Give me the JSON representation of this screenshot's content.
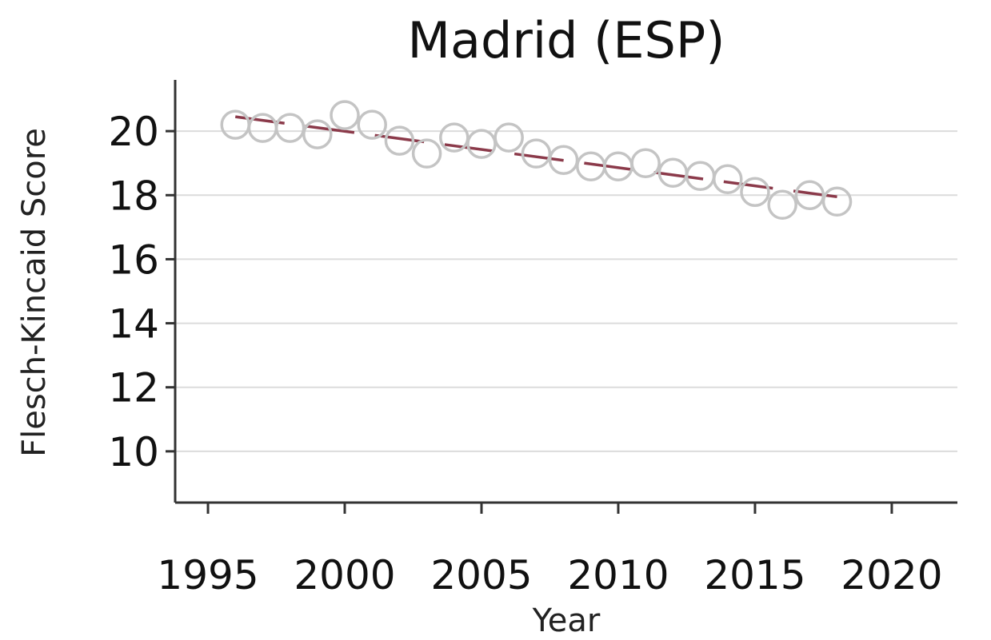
{
  "chart_data": {
    "type": "scatter",
    "title": "Madrid (ESP)",
    "xlabel": "Year",
    "ylabel": "Flesch-Kincaid Score",
    "xlim": [
      1993.8,
      2022.4
    ],
    "ylim": [
      8.4,
      21.6
    ],
    "xticks": [
      1995,
      2000,
      2005,
      2010,
      2015,
      2020
    ],
    "yticks": [
      10,
      12,
      14,
      16,
      18,
      20
    ],
    "grid": "horizontal",
    "colors": {
      "points": "#c4c4c4",
      "trend": "#8b3a4a"
    },
    "series": [
      {
        "type": "scatter",
        "x": [
          1996,
          1997,
          1998,
          1999,
          2000,
          2001,
          2002,
          2003,
          2004,
          2005,
          2006,
          2007,
          2008,
          2009,
          2010,
          2011,
          2012,
          2013,
          2014,
          2015,
          2016,
          2017,
          2018
        ],
        "y": [
          20.2,
          20.1,
          20.1,
          19.9,
          20.5,
          20.2,
          19.7,
          19.3,
          19.8,
          19.6,
          19.8,
          19.3,
          19.1,
          18.9,
          18.9,
          19.0,
          18.7,
          18.6,
          18.5,
          18.1,
          17.7,
          18.0,
          17.8
        ]
      },
      {
        "type": "line",
        "x": [
          1996,
          2018
        ],
        "y": [
          20.45,
          17.95
        ]
      }
    ]
  }
}
